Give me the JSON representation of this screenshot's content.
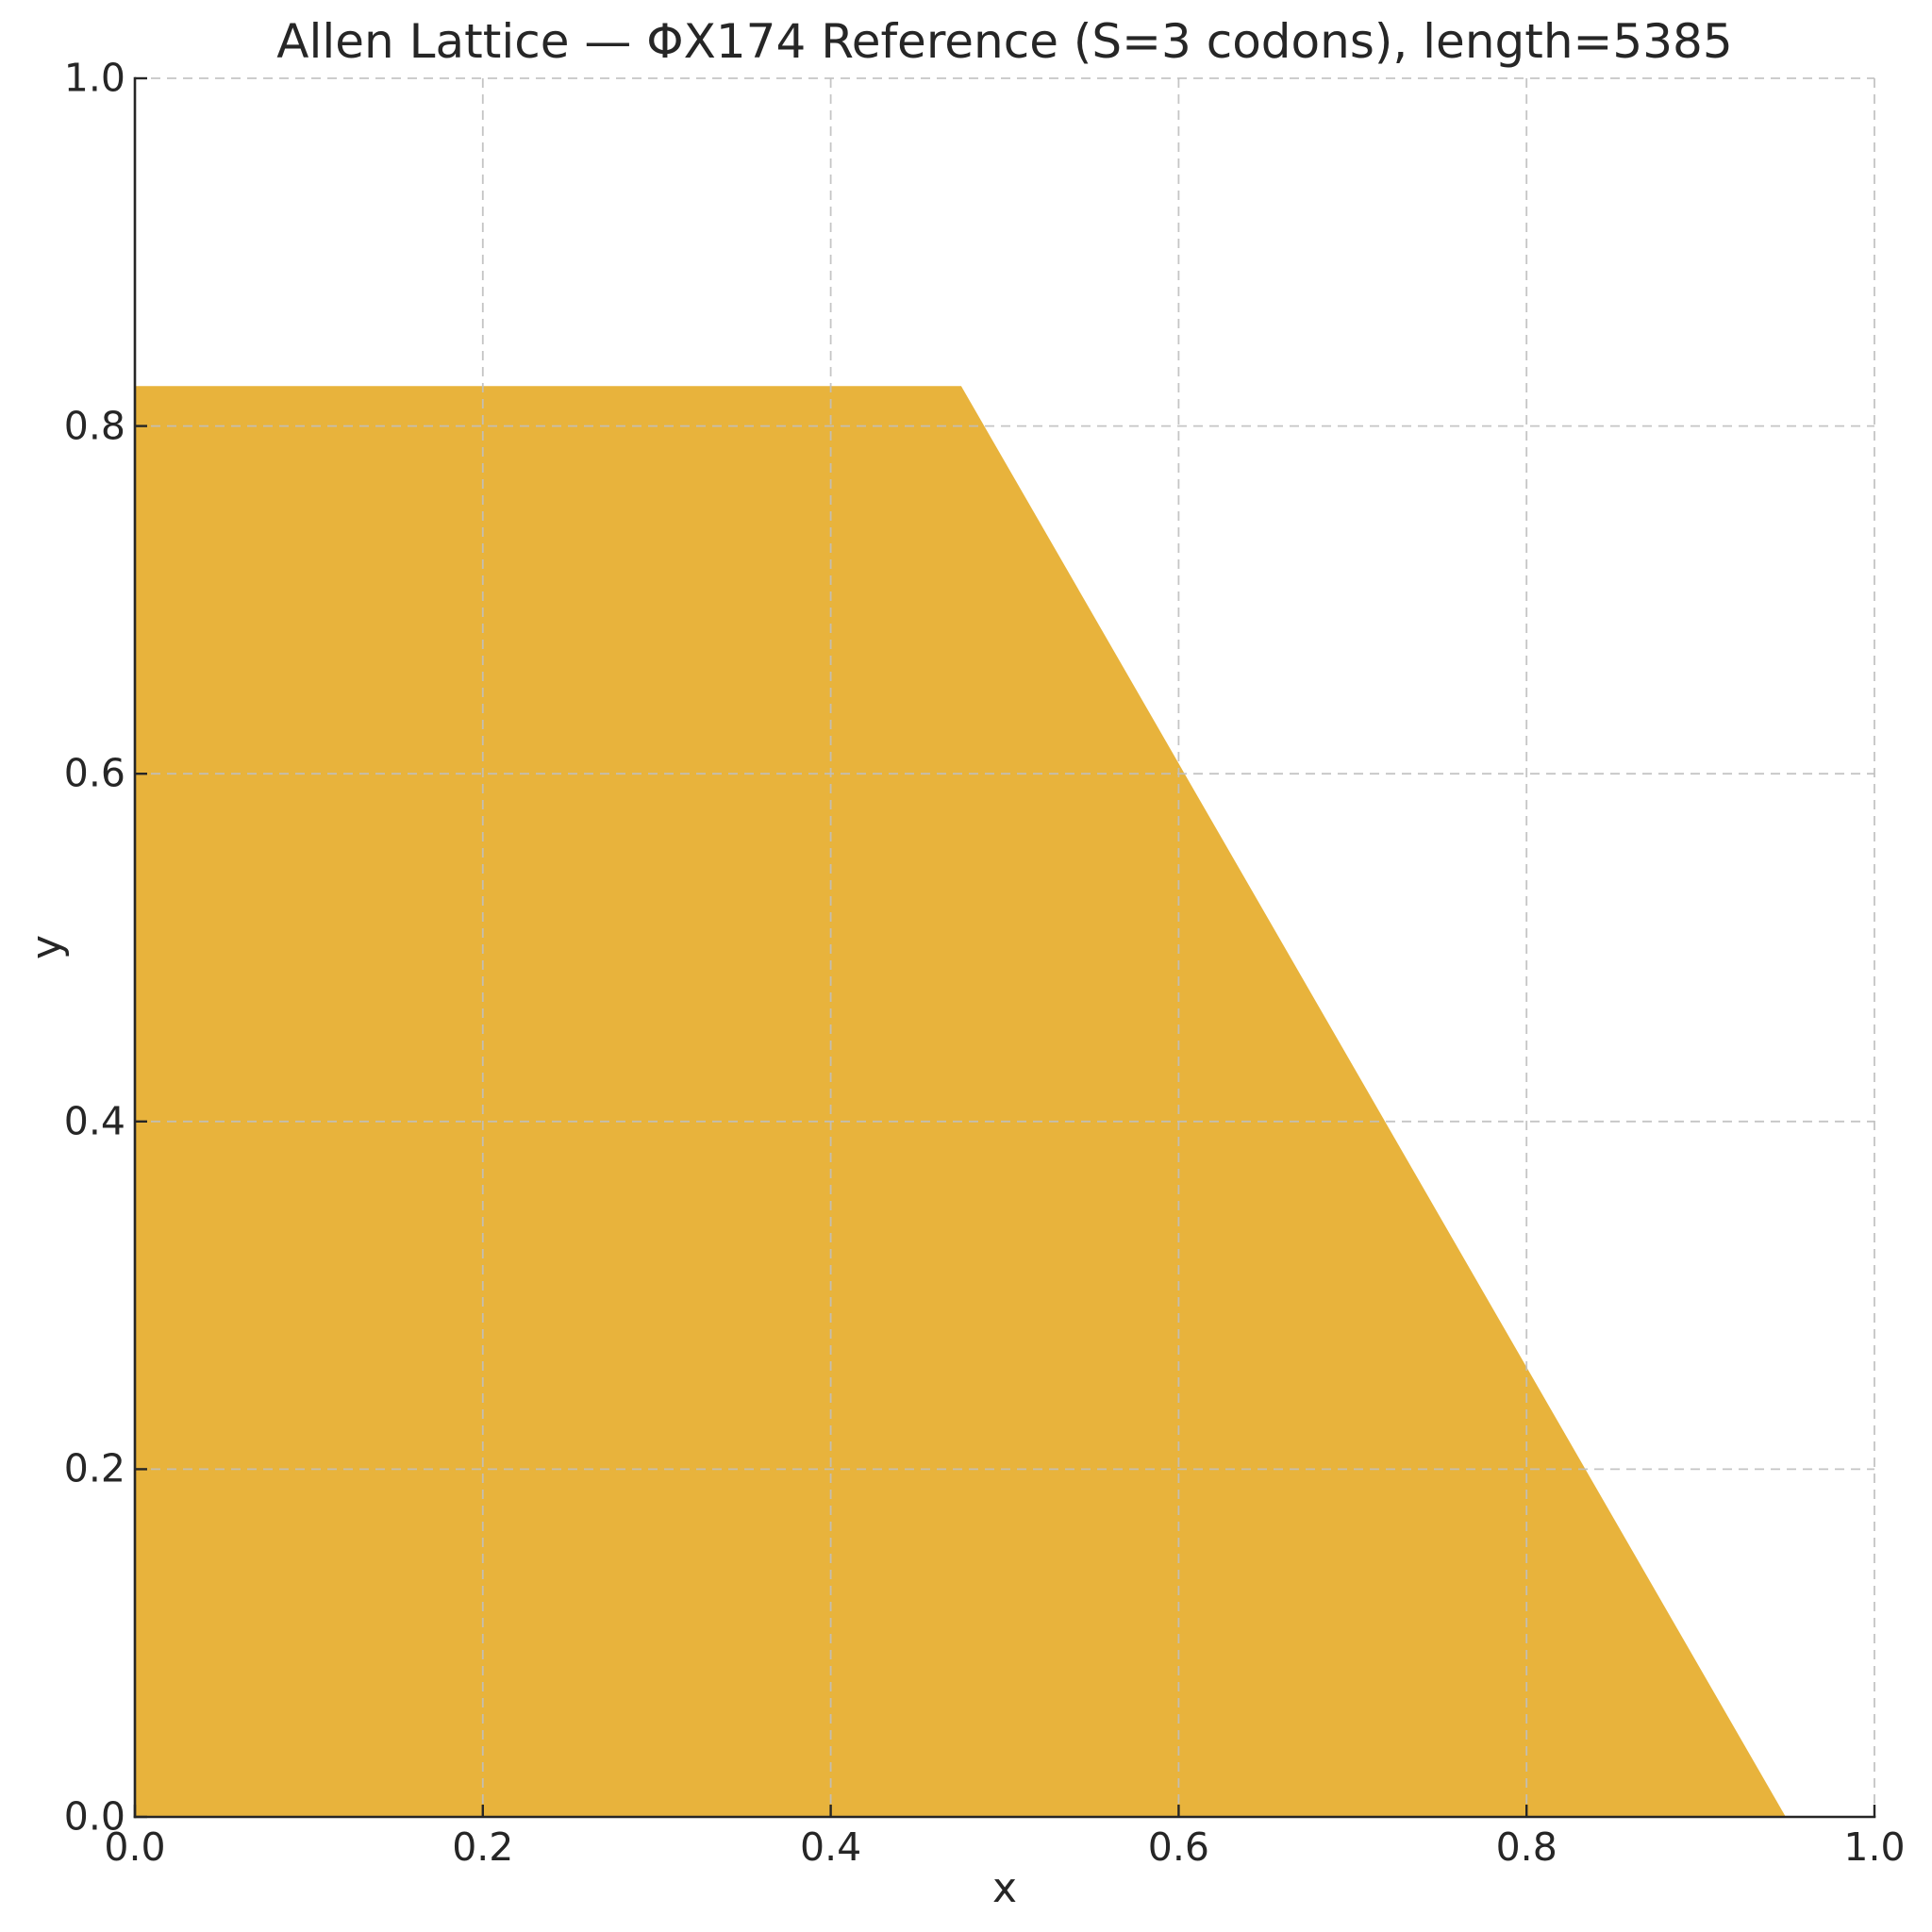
{
  "figure": {
    "background": "#ffffff"
  },
  "chart_data": {
    "type": "area",
    "title": "Allen Lattice — ΦX174 Reference (S=3 codons), length=5385",
    "xlabel": "x",
    "ylabel": "y",
    "xlim": [
      0.0,
      1.0
    ],
    "ylim": [
      0.0,
      1.0
    ],
    "xticks": {
      "values": [
        0.0,
        0.2,
        0.4,
        0.6,
        0.8,
        1.0
      ],
      "labels": [
        "0.0",
        "0.2",
        "0.4",
        "0.6",
        "0.8",
        "1.0"
      ]
    },
    "yticks": {
      "values": [
        0.0,
        0.2,
        0.4,
        0.6,
        0.8,
        1.0
      ],
      "labels": [
        "0.0",
        "0.2",
        "0.4",
        "0.6",
        "0.8",
        "1.0"
      ]
    },
    "grid": {
      "visible": true,
      "style": "dashed",
      "color": "#bfbfbf"
    },
    "legend": false,
    "axis_color": "#262626",
    "text_color": "#262626",
    "series": [
      {
        "name": "allen-lattice-region",
        "kind": "filled-polygon",
        "fill_color": "#e8b33c",
        "vertices_xy": [
          [
            0.0,
            0.0
          ],
          [
            0.0,
            0.823
          ],
          [
            0.475,
            0.823
          ],
          [
            0.949,
            0.0
          ]
        ],
        "shape_note": "flat top at y=0.823 from x=0 to x=0.475, then straight edge down to (0.949, 0)"
      }
    ]
  }
}
